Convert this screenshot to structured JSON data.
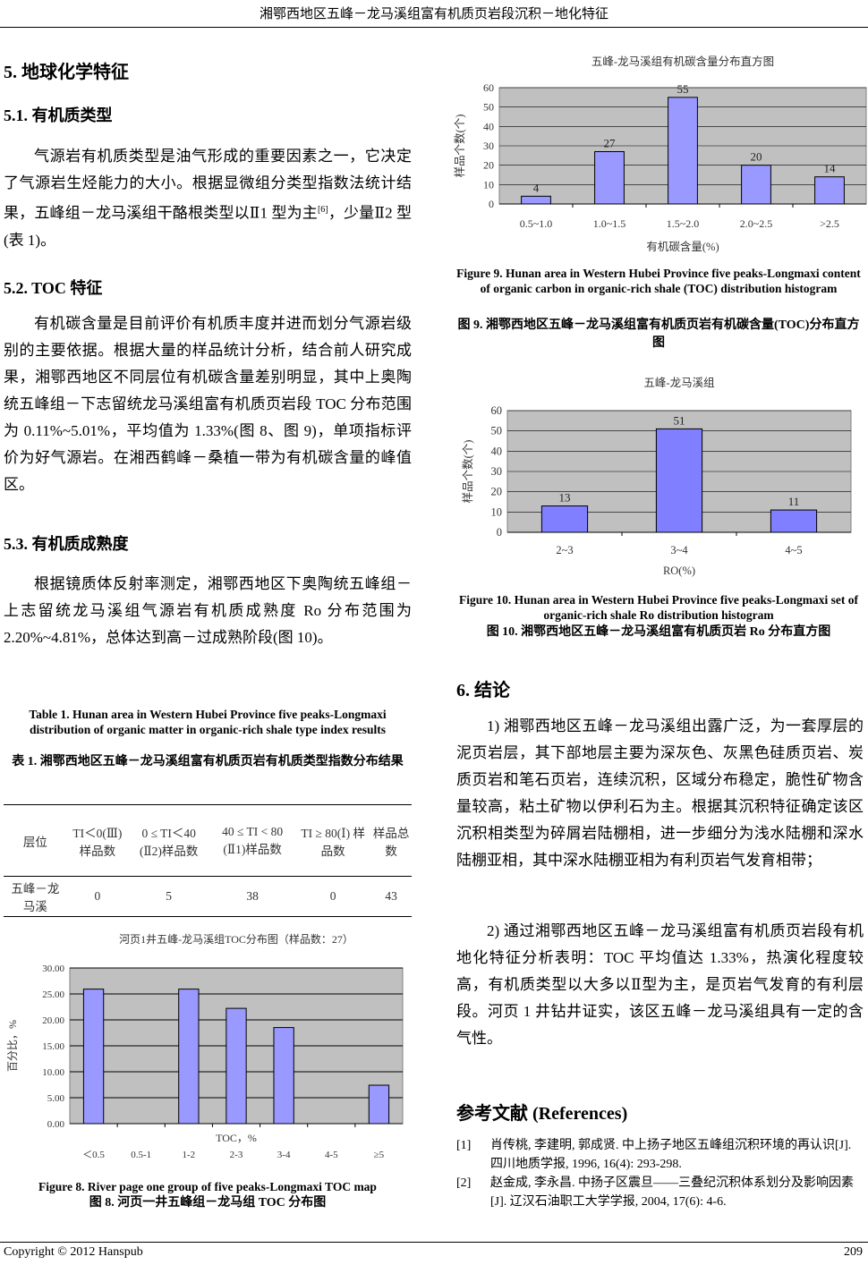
{
  "header": {
    "title": "湘鄂西地区五峰－龙马溪组富有机质页岩段沉积－地化特征"
  },
  "sec5": {
    "title": "5.  地球化学特征",
    "s51": {
      "title": "5.1.  有机质类型",
      "text": "气源岩有机质类型是油气形成的重要因素之一，它决定了气源岩生烃能力的大小。根据显微组分类型指数法统计结果，五峰组－龙马溪组干酪根类型以Ⅱ1 型为主",
      "sup": "[6]",
      "text2": "，少量Ⅱ2 型(表 1)。"
    },
    "s52": {
      "title": "5.2. TOC 特征",
      "text": "有机碳含量是目前评价有机质丰度并进而划分气源岩级别的主要依据。根据大量的样品统计分析，结合前人研究成果，湘鄂西地区不同层位有机碳含量差别明显，其中上奥陶统五峰组－下志留统龙马溪组富有机质页岩段 TOC 分布范围为 0.11%~5.01%，平均值为 1.33%(图 8、图 9)，单项指标评价为好气源岩。在湘西鹤峰－桑植一带为有机碳含量的峰值区。"
    },
    "s53": {
      "title": "5.3.  有机质成熟度",
      "text": "根据镜质体反射率测定，湘鄂西地区下奥陶统五峰组－上志留统龙马溪组气源岩有机质成熟度 Ro 分布范围为 2.20%~4.81%，总体达到高－过成熟阶段(图 10)。"
    }
  },
  "table1": {
    "caption_en": "Table 1. Hunan area in Western Hubei Province five peaks-Longmaxi distribution of organic matter in organic-rich shale type index results",
    "caption_zh": "表 1.  湘鄂西地区五峰－龙马溪组富有机质页岩有机质类型指数分布结果",
    "headers": [
      "层位",
      "TI＜0(Ⅲ)样品数",
      "0 ≤ TI＜40 (Ⅱ2)样品数",
      "40 ≤ TI < 80 (Ⅱ1)样品数",
      "TI ≥ 80(Ⅰ) 样品数",
      "样品总数"
    ],
    "rows": [
      [
        "五峰－龙马溪",
        "0",
        "5",
        "38",
        "0",
        "43"
      ]
    ]
  },
  "chart_data": [
    {
      "type": "bar",
      "title": "河页1井五峰-龙马溪组TOC分布图（样品数：27）",
      "xlabel": "TOC，%",
      "ylabel": "百分比，%",
      "categories": [
        "＜0.5",
        "0.5-1",
        "1-2",
        "2-3",
        "3-4",
        "4-5",
        "≥5"
      ],
      "values": [
        25.93,
        0,
        25.93,
        22.22,
        18.52,
        0,
        7.41
      ],
      "ylim": [
        0,
        30
      ],
      "yticks": [
        "0.00",
        "5.00",
        "10.00",
        "15.00",
        "20.00",
        "25.00",
        "30.00"
      ],
      "grid": true,
      "bar_color": "#9999ff",
      "plot_bg": "#c0c0c0",
      "data_labels": false,
      "caption_en": "Figure 8. River page one group of five peaks-Longmaxi TOC map",
      "caption_zh": "图 8.  河页一井五峰组－龙马组 TOC 分布图"
    },
    {
      "type": "bar",
      "title": "五峰-龙马溪组有机碳含量分布直方图",
      "xlabel": "有机碳含量(%)",
      "ylabel": "样品个数(个)",
      "categories": [
        "0.5~1.0",
        "1.0~1.5",
        "1.5~2.0",
        "2.0~2.5",
        ">2.5"
      ],
      "values": [
        4,
        27,
        55,
        20,
        14
      ],
      "ylim": [
        0,
        60
      ],
      "yticks": [
        "0",
        "10",
        "20",
        "30",
        "40",
        "50",
        "60"
      ],
      "grid": true,
      "bar_color": "#9999ff",
      "plot_bg": "#c0c0c0",
      "data_labels": true,
      "caption_en": "Figure 9. Hunan area in Western Hubei Province five peaks-Longmaxi content of organic carbon in organic-rich shale (TOC) distribution histogram",
      "caption_zh": "图 9.  湘鄂西地区五峰－龙马溪组富有机质页岩有机碳含量(TOC)分布直方图"
    },
    {
      "type": "bar",
      "title": "五峰-龙马溪组",
      "xlabel": "RO(%)",
      "ylabel": "样品个数(个)",
      "categories": [
        "2~3",
        "3~4",
        "4~5"
      ],
      "values": [
        13,
        51,
        11
      ],
      "ylim": [
        0,
        60
      ],
      "yticks": [
        "0",
        "10",
        "20",
        "30",
        "40",
        "50",
        "60"
      ],
      "grid": true,
      "bar_color": "#7f7fff",
      "plot_bg": "#c0c0c0",
      "data_labels": true,
      "caption_en": "Figure 10. Hunan area in Western Hubei Province five peaks-Longmaxi set of organic-rich shale Ro distribution histogram",
      "caption_zh": "图 10.  湘鄂西地区五峰－龙马溪组富有机质页岩 Ro 分布直方图"
    }
  ],
  "sec6": {
    "title": "6.  结论",
    "p1": "1)  湘鄂西地区五峰－龙马溪组出露广泛，为一套厚层的泥页岩层，其下部地层主要为深灰色、灰黑色硅质页岩、炭质页岩和笔石页岩，连续沉积，区域分布稳定，脆性矿物含量较高，粘土矿物以伊利石为主。根据其沉积特征确定该区沉积相类型为碎屑岩陆棚相，进一步细分为浅水陆棚和深水陆棚亚相，其中深水陆棚亚相为有利页岩气发育相带；",
    "p2": "2)  通过湘鄂西地区五峰－龙马溪组富有机质页岩段有机地化特征分析表明：TOC 平均值达 1.33%，热演化程度较高，有机质类型以大多以Ⅱ型为主，是页岩气发育的有利层段。河页 1 井钻井证实，该区五峰－龙马溪组具有一定的含气性。"
  },
  "refs": {
    "title": "参考文献  (References)",
    "items": [
      {
        "n": "[1]",
        "t": "肖传桃, 李建明, 郭成贤. 中上扬子地区五峰组沉积环境的再认识[J]. 四川地质学报, 1996, 16(4): 293-298."
      },
      {
        "n": "[2]",
        "t": "赵金成, 李永昌. 中扬子区震旦——三叠纪沉积体系划分及影响因素[J]. 辽汉石油职工大学学报, 2004, 17(6): 4-6."
      }
    ]
  },
  "footer": {
    "copyright": "Copyright © 2012 Hanspub",
    "page": "209"
  }
}
